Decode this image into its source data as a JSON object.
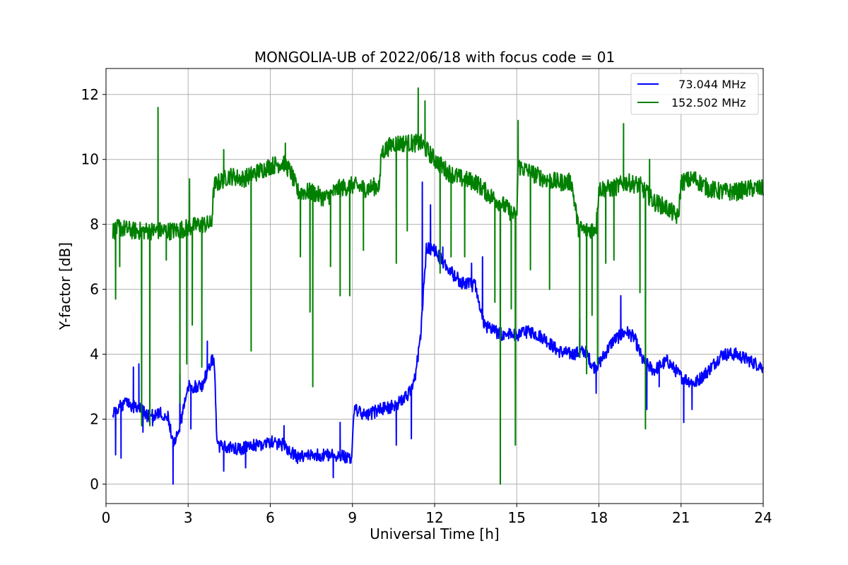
{
  "chart_data": {
    "type": "line",
    "title": "MONGOLIA-UB of 2022/06/18 with focus code = 01",
    "xlabel": "Universal Time [h]",
    "ylabel": "Y-factor [dB]",
    "xlim": [
      0,
      24
    ],
    "ylim": [
      -0.6,
      12.8
    ],
    "xticks": [
      0,
      3,
      6,
      9,
      12,
      15,
      18,
      21,
      24
    ],
    "yticks": [
      0,
      2,
      4,
      6,
      8,
      10,
      12
    ],
    "grid": true,
    "legend_position": "top-right",
    "series": [
      {
        "name": "  73.044 MHz",
        "color": "#0000ff",
        "baseline": [
          [
            0.25,
            2.2
          ],
          [
            0.5,
            2.4
          ],
          [
            0.75,
            2.5
          ],
          [
            1.0,
            2.4
          ],
          [
            1.25,
            2.3
          ],
          [
            1.5,
            2.1
          ],
          [
            1.75,
            2.1
          ],
          [
            2.0,
            2.2
          ],
          [
            2.25,
            2.1
          ],
          [
            2.5,
            1.2
          ],
          [
            2.75,
            2.0
          ],
          [
            3.0,
            3.0
          ],
          [
            3.25,
            3.0
          ],
          [
            3.5,
            3.0
          ],
          [
            3.75,
            3.6
          ],
          [
            3.95,
            3.9
          ],
          [
            4.05,
            1.2
          ],
          [
            4.5,
            1.1
          ],
          [
            5.0,
            1.1
          ],
          [
            5.5,
            1.2
          ],
          [
            6.0,
            1.3
          ],
          [
            6.5,
            1.2
          ],
          [
            7.0,
            0.8
          ],
          [
            7.5,
            0.9
          ],
          [
            8.0,
            0.9
          ],
          [
            8.5,
            0.9
          ],
          [
            8.98,
            0.8
          ],
          [
            9.05,
            2.3
          ],
          [
            9.5,
            2.1
          ],
          [
            10.0,
            2.3
          ],
          [
            10.5,
            2.4
          ],
          [
            11.0,
            2.7
          ],
          [
            11.3,
            3.3
          ],
          [
            11.5,
            4.7
          ],
          [
            11.7,
            7.3
          ],
          [
            12.0,
            7.2
          ],
          [
            12.5,
            6.6
          ],
          [
            13.0,
            6.2
          ],
          [
            13.5,
            6.1
          ],
          [
            13.8,
            4.9
          ],
          [
            14.2,
            4.7
          ],
          [
            14.5,
            4.6
          ],
          [
            15.0,
            4.6
          ],
          [
            15.5,
            4.7
          ],
          [
            16.0,
            4.5
          ],
          [
            16.5,
            4.1
          ],
          [
            17.0,
            4.0
          ],
          [
            17.5,
            4.1
          ],
          [
            17.8,
            3.6
          ],
          [
            18.0,
            3.7
          ],
          [
            18.5,
            4.4
          ],
          [
            19.0,
            4.7
          ],
          [
            19.3,
            4.5
          ],
          [
            19.6,
            3.8
          ],
          [
            20.0,
            3.5
          ],
          [
            20.5,
            3.8
          ],
          [
            21.0,
            3.3
          ],
          [
            21.5,
            3.1
          ],
          [
            22.0,
            3.5
          ],
          [
            22.5,
            4.0
          ],
          [
            23.0,
            4.0
          ],
          [
            23.5,
            3.8
          ],
          [
            24.0,
            3.6
          ]
        ],
        "noise": 0.2,
        "spikes": [
          [
            0.35,
            0.9
          ],
          [
            0.55,
            0.8
          ],
          [
            1.0,
            3.6
          ],
          [
            1.2,
            3.7
          ],
          [
            1.35,
            1.6
          ],
          [
            1.7,
            1.8
          ],
          [
            2.45,
            0.0
          ],
          [
            2.7,
            3.4
          ],
          [
            3.1,
            1.7
          ],
          [
            3.7,
            4.4
          ],
          [
            4.3,
            0.4
          ],
          [
            5.1,
            0.5
          ],
          [
            6.5,
            1.8
          ],
          [
            8.3,
            0.2
          ],
          [
            8.55,
            1.9
          ],
          [
            10.6,
            1.2
          ],
          [
            11.15,
            1.4
          ],
          [
            11.55,
            9.3
          ],
          [
            11.85,
            8.6
          ],
          [
            12.3,
            7.3
          ],
          [
            13.35,
            6.8
          ],
          [
            13.75,
            7.0
          ],
          [
            17.3,
            5.1
          ],
          [
            17.9,
            2.8
          ],
          [
            18.8,
            5.8
          ],
          [
            19.75,
            2.3
          ],
          [
            20.2,
            3.0
          ],
          [
            21.1,
            1.9
          ],
          [
            21.4,
            2.3
          ]
        ]
      },
      {
        "name": "152.502 MHz",
        "color": "#008000",
        "baseline": [
          [
            0.25,
            7.8
          ],
          [
            0.5,
            7.9
          ],
          [
            1.0,
            7.8
          ],
          [
            1.5,
            7.8
          ],
          [
            2.0,
            7.8
          ],
          [
            2.5,
            7.8
          ],
          [
            3.0,
            7.9
          ],
          [
            3.5,
            8.0
          ],
          [
            3.85,
            8.0
          ],
          [
            3.95,
            9.2
          ],
          [
            4.5,
            9.5
          ],
          [
            5.0,
            9.4
          ],
          [
            5.5,
            9.6
          ],
          [
            6.0,
            9.8
          ],
          [
            6.5,
            9.9
          ],
          [
            6.75,
            9.6
          ],
          [
            7.0,
            9.0
          ],
          [
            7.5,
            9.0
          ],
          [
            8.0,
            8.8
          ],
          [
            8.5,
            9.1
          ],
          [
            9.0,
            9.2
          ],
          [
            9.5,
            9.1
          ],
          [
            10.0,
            9.2
          ],
          [
            10.05,
            10.2
          ],
          [
            10.5,
            10.5
          ],
          [
            11.0,
            10.5
          ],
          [
            11.5,
            10.5
          ],
          [
            12.0,
            10.0
          ],
          [
            12.5,
            9.6
          ],
          [
            13.0,
            9.4
          ],
          [
            13.5,
            9.3
          ],
          [
            14.0,
            8.9
          ],
          [
            14.5,
            8.6
          ],
          [
            15.0,
            8.2
          ],
          [
            15.05,
            9.8
          ],
          [
            15.5,
            9.6
          ],
          [
            16.0,
            9.4
          ],
          [
            16.5,
            9.3
          ],
          [
            17.0,
            9.3
          ],
          [
            17.25,
            7.9
          ],
          [
            17.5,
            7.8
          ],
          [
            17.9,
            7.9
          ],
          [
            18.0,
            9.1
          ],
          [
            18.5,
            9.1
          ],
          [
            19.0,
            9.3
          ],
          [
            19.5,
            9.2
          ],
          [
            20.0,
            8.7
          ],
          [
            20.5,
            8.5
          ],
          [
            20.9,
            8.2
          ],
          [
            21.0,
            9.3
          ],
          [
            21.5,
            9.4
          ],
          [
            22.0,
            9.1
          ],
          [
            22.5,
            9.0
          ],
          [
            23.0,
            9.0
          ],
          [
            23.5,
            9.1
          ],
          [
            24.0,
            9.1
          ]
        ],
        "noise": 0.28,
        "spikes": [
          [
            0.35,
            5.7
          ],
          [
            0.5,
            6.7
          ],
          [
            1.3,
            1.8
          ],
          [
            1.6,
            1.8
          ],
          [
            1.9,
            11.6
          ],
          [
            2.2,
            6.9
          ],
          [
            2.7,
            2.5
          ],
          [
            2.95,
            3.7
          ],
          [
            3.05,
            9.4
          ],
          [
            3.15,
            4.9
          ],
          [
            3.5,
            3.6
          ],
          [
            4.3,
            10.3
          ],
          [
            5.3,
            4.1
          ],
          [
            6.55,
            10.5
          ],
          [
            7.1,
            7.0
          ],
          [
            7.45,
            5.3
          ],
          [
            7.55,
            3.0
          ],
          [
            8.2,
            6.7
          ],
          [
            8.55,
            5.8
          ],
          [
            8.9,
            5.8
          ],
          [
            9.4,
            7.2
          ],
          [
            10.6,
            6.8
          ],
          [
            11.0,
            7.8
          ],
          [
            11.4,
            12.2
          ],
          [
            11.65,
            11.8
          ],
          [
            12.2,
            6.5
          ],
          [
            12.6,
            7.0
          ],
          [
            13.1,
            7.0
          ],
          [
            14.2,
            5.6
          ],
          [
            14.4,
            0.0
          ],
          [
            14.8,
            5.4
          ],
          [
            14.95,
            1.2
          ],
          [
            15.05,
            11.2
          ],
          [
            15.5,
            6.6
          ],
          [
            16.2,
            6.0
          ],
          [
            17.3,
            3.9
          ],
          [
            17.55,
            3.4
          ],
          [
            17.75,
            5.2
          ],
          [
            17.95,
            3.7
          ],
          [
            18.25,
            6.8
          ],
          [
            18.55,
            6.9
          ],
          [
            18.9,
            11.1
          ],
          [
            19.5,
            5.9
          ],
          [
            19.7,
            1.7
          ],
          [
            19.85,
            10.0
          ]
        ]
      }
    ]
  }
}
